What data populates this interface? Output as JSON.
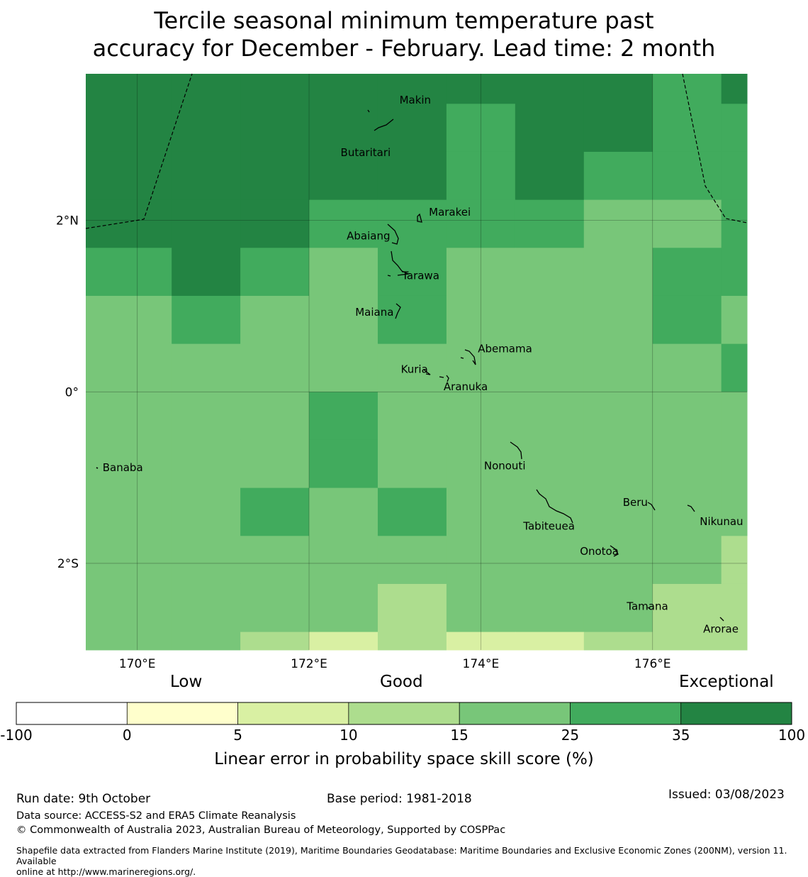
{
  "title": {
    "line1": "Tercile seasonal minimum temperature past",
    "line2": "accuracy for December - February. Lead time: 2 month"
  },
  "map": {
    "lon_range": [
      169.4,
      177.1
    ],
    "lat_range": [
      -3.01,
      3.71
    ],
    "x_ticks": [
      {
        "value": 170,
        "label": "170°E"
      },
      {
        "value": 172,
        "label": "172°E"
      },
      {
        "value": 174,
        "label": "174°E"
      },
      {
        "value": 176,
        "label": "176°E"
      }
    ],
    "y_ticks": [
      {
        "value": 2,
        "label": "2°N"
      },
      {
        "value": 0,
        "label": "0°"
      },
      {
        "value": -2,
        "label": "2°S"
      }
    ],
    "grid_columns_lon": [
      169.4,
      170.4,
      171.2,
      172.0,
      172.8,
      173.6,
      174.4,
      175.2,
      176.0,
      176.8,
      177.1
    ],
    "grid_rows_lat": [
      3.71,
      3.36,
      2.8,
      2.24,
      1.68,
      1.12,
      0.56,
      0.0,
      -0.56,
      -1.12,
      -1.68,
      -2.24,
      -2.8,
      -3.01
    ],
    "grid_classes": [
      [
        6,
        6,
        6,
        6,
        6,
        6,
        6,
        6,
        5,
        6
      ],
      [
        6,
        6,
        6,
        6,
        6,
        5,
        6,
        6,
        5,
        5
      ],
      [
        6,
        6,
        6,
        6,
        6,
        5,
        6,
        5,
        5,
        5
      ],
      [
        6,
        6,
        6,
        5,
        5,
        5,
        5,
        4,
        4,
        5
      ],
      [
        5,
        6,
        5,
        4,
        5,
        4,
        4,
        4,
        5,
        5
      ],
      [
        4,
        5,
        4,
        4,
        5,
        4,
        4,
        4,
        5,
        4
      ],
      [
        4,
        4,
        4,
        4,
        4,
        4,
        4,
        4,
        4,
        5
      ],
      [
        4,
        4,
        4,
        5,
        4,
        4,
        4,
        4,
        4,
        4
      ],
      [
        4,
        4,
        4,
        5,
        4,
        4,
        4,
        4,
        4,
        4
      ],
      [
        4,
        4,
        5,
        4,
        5,
        4,
        4,
        4,
        4,
        4
      ],
      [
        4,
        4,
        4,
        4,
        4,
        4,
        4,
        4,
        4,
        3
      ],
      [
        4,
        4,
        4,
        4,
        3,
        4,
        4,
        4,
        3,
        3
      ],
      [
        4,
        4,
        3,
        2,
        3,
        2,
        2,
        3,
        3,
        3
      ]
    ],
    "islands": [
      {
        "name": "Makin",
        "lon": 172.97,
        "lat": 3.33
      },
      {
        "name": "Butaritari",
        "lon": 172.78,
        "lat": 3.0
      },
      {
        "name": "Marakei",
        "lon": 173.28,
        "lat": 2.02
      },
      {
        "name": "Abaiang",
        "lon": 172.95,
        "lat": 1.82
      },
      {
        "name": "Tarawa",
        "lon": 173.0,
        "lat": 1.38
      },
      {
        "name": "Maiana",
        "lon": 173.0,
        "lat": 0.93
      },
      {
        "name": "Abemama",
        "lon": 173.85,
        "lat": 0.38
      },
      {
        "name": "Kuria",
        "lon": 173.4,
        "lat": 0.22
      },
      {
        "name": "Aranuka",
        "lon": 173.6,
        "lat": 0.16
      },
      {
        "name": "Nonouti",
        "lon": 174.4,
        "lat": -0.68
      },
      {
        "name": "Banaba",
        "lon": 169.53,
        "lat": -0.86
      },
      {
        "name": "Tabiteuea",
        "lon": 174.8,
        "lat": -1.4
      },
      {
        "name": "Beru",
        "lon": 176.0,
        "lat": -1.33
      },
      {
        "name": "Nikunau",
        "lon": 176.45,
        "lat": -1.37
      },
      {
        "name": "Onotoa",
        "lon": 175.55,
        "lat": -1.8
      },
      {
        "name": "Tamana",
        "lon": 175.98,
        "lat": -2.5
      },
      {
        "name": "Arorae",
        "lon": 176.82,
        "lat": -2.65
      }
    ]
  },
  "legend": {
    "categories": {
      "low": "Low",
      "good": "Good",
      "exceptional": "Exceptional"
    },
    "bins": [
      {
        "from": -100,
        "to": 0,
        "color": "#ffffff"
      },
      {
        "from": 0,
        "to": 5,
        "color": "#ffffcc"
      },
      {
        "from": 5,
        "to": 10,
        "color": "#d9f0a3"
      },
      {
        "from": 10,
        "to": 15,
        "color": "#addd8e"
      },
      {
        "from": 15,
        "to": 25,
        "color": "#78c679"
      },
      {
        "from": 25,
        "to": 35,
        "color": "#41ab5d"
      },
      {
        "from": 35,
        "to": 100,
        "color": "#238443"
      }
    ],
    "tick_labels": [
      "-100",
      "0",
      "5",
      "10",
      "15",
      "25",
      "35",
      "100"
    ],
    "axis_label": "Linear error in probability space skill score (%)"
  },
  "footer": {
    "run_date": "Run date: 9th October",
    "base_period": "Base period: 1981-2018",
    "issued": "Issued: 03/08/2023",
    "data_source": "Data source: ACCESS-S2 and ERA5 Climate Reanalysis",
    "copyright": "© Commonwealth of Australia 2023, Australian Bureau of Meteorology, Supported by COSPPac",
    "shapefile_line1": "Shapefile data extracted from Flanders Marine Institute (2019), Maritime Boundaries Geodatabase: Maritime Boundaries and Exclusive Economic Zones (200NM), version 11. Available",
    "shapefile_line2": "online at http://www.marineregions.org/."
  }
}
